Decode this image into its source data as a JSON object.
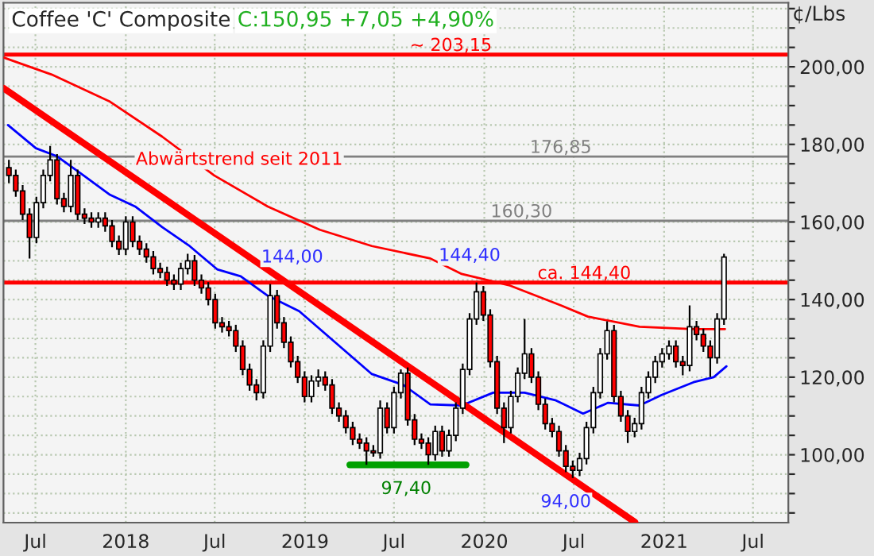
{
  "chart_data": {
    "type": "candlestick",
    "title": "Coffee 'C' Composite",
    "subtitle": "C:150,95 +7,05 +4,90%",
    "ylabel": "¢/Lbs",
    "x": [
      "2017-05-08",
      "2017-05-22",
      "2017-06-05",
      "2017-06-19",
      "2017-07-03",
      "2017-07-17",
      "2017-07-31",
      "2017-08-14",
      "2017-08-28",
      "2017-09-11",
      "2017-09-25",
      "2017-10-09",
      "2017-10-23",
      "2017-11-06",
      "2017-11-20",
      "2017-12-04",
      "2017-12-18",
      "2018-01-01",
      "2018-01-15",
      "2018-01-29",
      "2018-02-12",
      "2018-02-26",
      "2018-03-12",
      "2018-03-26",
      "2018-04-09",
      "2018-04-23",
      "2018-05-07",
      "2018-05-21",
      "2018-06-04",
      "2018-06-18",
      "2018-07-02",
      "2018-07-16",
      "2018-07-30",
      "2018-08-13",
      "2018-08-27",
      "2018-09-10",
      "2018-09-24",
      "2018-10-08",
      "2018-10-22",
      "2018-11-05",
      "2018-11-19",
      "2018-12-03",
      "2018-12-17",
      "2018-12-31",
      "2019-01-14",
      "2019-01-28",
      "2019-02-11",
      "2019-02-25",
      "2019-03-11",
      "2019-03-25",
      "2019-04-08",
      "2019-04-22",
      "2019-05-06",
      "2019-05-20",
      "2019-06-03",
      "2019-06-17",
      "2019-07-01",
      "2019-07-15",
      "2019-07-29",
      "2019-08-12",
      "2019-08-26",
      "2019-09-09",
      "2019-09-23",
      "2019-10-07",
      "2019-10-21",
      "2019-11-04",
      "2019-11-18",
      "2019-12-02",
      "2019-12-16",
      "2019-12-30",
      "2020-01-13",
      "2020-01-27",
      "2020-02-10",
      "2020-02-24",
      "2020-03-09",
      "2020-03-23",
      "2020-04-06",
      "2020-04-20",
      "2020-05-04",
      "2020-05-18",
      "2020-06-01",
      "2020-06-15",
      "2020-06-29",
      "2020-07-13",
      "2020-07-27",
      "2020-08-10",
      "2020-08-24",
      "2020-09-07",
      "2020-09-21",
      "2020-10-05",
      "2020-10-19",
      "2020-11-02",
      "2020-11-16",
      "2020-11-30",
      "2020-12-14",
      "2020-12-28",
      "2021-01-11",
      "2021-01-25",
      "2021-02-08",
      "2021-02-22",
      "2021-03-08",
      "2021-03-22",
      "2021-04-05",
      "2021-04-19",
      "2021-05-03"
    ],
    "ohlc": [
      [
        174,
        176,
        170,
        172
      ],
      [
        172,
        173.5,
        166.5,
        168
      ],
      [
        168,
        169.5,
        160.5,
        162
      ],
      [
        162,
        163.5,
        150.6,
        156
      ],
      [
        156,
        166.5,
        154.5,
        165
      ],
      [
        165,
        173.5,
        163.5,
        172
      ],
      [
        172,
        179.6,
        170.5,
        176
      ],
      [
        176,
        177.5,
        164.5,
        166
      ],
      [
        166,
        167.5,
        162.5,
        164
      ],
      [
        164,
        176,
        162.5,
        172
      ],
      [
        172,
        173.5,
        160.5,
        162
      ],
      [
        162,
        163.5,
        159.5,
        161
      ],
      [
        161,
        162.5,
        158.5,
        160
      ],
      [
        160,
        162.5,
        158.5,
        161
      ],
      [
        161,
        162.5,
        157.5,
        159
      ],
      [
        159,
        160.5,
        153.5,
        155
      ],
      [
        155,
        156.5,
        151.5,
        153
      ],
      [
        153,
        161.5,
        151.5,
        160
      ],
      [
        160,
        161.5,
        153.5,
        155
      ],
      [
        155,
        156.5,
        151.5,
        153
      ],
      [
        153,
        154.5,
        149.5,
        151
      ],
      [
        151,
        152.5,
        146.5,
        148
      ],
      [
        148,
        149.5,
        145.5,
        147
      ],
      [
        147,
        148.5,
        143.5,
        145
      ],
      [
        145,
        146.5,
        142.5,
        144
      ],
      [
        144,
        149.5,
        142.5,
        148
      ],
      [
        148,
        151.8,
        146.5,
        150
      ],
      [
        150,
        151.5,
        143.5,
        145
      ],
      [
        145,
        146.5,
        141.5,
        143
      ],
      [
        143,
        144.5,
        138.5,
        140
      ],
      [
        140,
        141.5,
        132.5,
        134
      ],
      [
        134,
        135.5,
        131.5,
        133
      ],
      [
        133,
        134.5,
        130.5,
        132
      ],
      [
        132,
        133.5,
        126.5,
        128
      ],
      [
        128,
        129.5,
        120.5,
        122
      ],
      [
        122,
        123.5,
        116.5,
        118
      ],
      [
        118,
        119.5,
        114,
        116
      ],
      [
        116,
        129.5,
        114.5,
        128
      ],
      [
        128,
        144,
        126.5,
        141
      ],
      [
        141,
        142.5,
        132.5,
        134
      ],
      [
        134,
        135.5,
        127.5,
        129
      ],
      [
        129,
        130.5,
        122.5,
        124
      ],
      [
        124,
        125.5,
        118.5,
        120
      ],
      [
        120,
        121.5,
        113.5,
        115
      ],
      [
        115,
        120.5,
        113.5,
        119
      ],
      [
        119,
        122,
        117.5,
        120
      ],
      [
        120,
        121.5,
        116.5,
        118
      ],
      [
        118,
        119.5,
        110.5,
        112
      ],
      [
        112,
        113.5,
        108.5,
        110
      ],
      [
        110,
        111.5,
        105.5,
        107
      ],
      [
        107,
        108.5,
        102.5,
        104
      ],
      [
        104,
        105.5,
        101.5,
        103
      ],
      [
        103,
        104.5,
        97.4,
        101
      ],
      [
        101,
        102.5,
        99.5,
        100.5
      ],
      [
        100.5,
        114,
        99,
        112
      ],
      [
        112,
        113.5,
        105.5,
        107
      ],
      [
        107,
        117.5,
        105.5,
        116
      ],
      [
        116,
        122,
        114.5,
        121
      ],
      [
        121,
        122.5,
        107.5,
        109
      ],
      [
        109,
        110.5,
        102.5,
        104
      ],
      [
        104,
        105.5,
        101.5,
        103
      ],
      [
        103,
        104.5,
        97.4,
        100
      ],
      [
        100,
        107.5,
        98.5,
        106
      ],
      [
        106,
        107.5,
        99.5,
        101
      ],
      [
        101,
        106.5,
        99.5,
        105
      ],
      [
        105,
        113.5,
        103.5,
        112
      ],
      [
        112,
        123.5,
        110.5,
        122
      ],
      [
        122,
        136.5,
        120.5,
        135
      ],
      [
        135,
        144.4,
        133.5,
        142
      ],
      [
        142,
        143.5,
        134.5,
        136
      ],
      [
        136,
        137.5,
        122.5,
        124
      ],
      [
        124,
        125.5,
        110.5,
        112
      ],
      [
        112,
        113.5,
        103,
        107
      ],
      [
        107,
        116.5,
        105.5,
        115
      ],
      [
        115,
        122.5,
        113.5,
        121
      ],
      [
        121,
        135,
        119.5,
        126
      ],
      [
        126,
        127.5,
        118.5,
        120
      ],
      [
        120,
        121.5,
        111.5,
        113
      ],
      [
        113,
        114.5,
        106.5,
        108
      ],
      [
        108,
        109.5,
        104.5,
        106
      ],
      [
        106,
        107.5,
        99.5,
        101
      ],
      [
        101,
        102.5,
        95.5,
        97
      ],
      [
        97,
        98.5,
        94,
        96
      ],
      [
        96,
        100.5,
        94.5,
        99
      ],
      [
        99,
        108.5,
        97.5,
        107
      ],
      [
        107,
        117.5,
        105.5,
        116
      ],
      [
        116,
        127.5,
        114.5,
        126
      ],
      [
        126,
        134.4,
        124.5,
        132
      ],
      [
        132,
        133.5,
        113.5,
        115
      ],
      [
        115,
        116.5,
        108.5,
        110
      ],
      [
        110,
        111.5,
        103,
        106
      ],
      [
        106,
        109.5,
        104.5,
        108
      ],
      [
        108,
        117.5,
        106.5,
        116
      ],
      [
        116,
        121.5,
        114.5,
        120
      ],
      [
        120,
        125.5,
        118.5,
        124
      ],
      [
        124,
        127.5,
        122.5,
        126
      ],
      [
        126,
        129.5,
        124.5,
        128
      ],
      [
        128,
        129.5,
        122.5,
        124
      ],
      [
        124,
        125.5,
        120.5,
        123
      ],
      [
        123,
        138.5,
        121.5,
        133
      ],
      [
        133,
        134.5,
        129.5,
        131
      ],
      [
        131,
        132.5,
        126.5,
        128
      ],
      [
        128,
        129.5,
        120,
        125
      ],
      [
        125,
        136.5,
        123.5,
        135
      ],
      [
        135,
        151.8,
        133.5,
        150.95
      ]
    ],
    "series": [
      {
        "type": "line",
        "color": "#ff0000",
        "x": [
          "2017-04-27",
          "2017-08-03",
          "2017-11-30",
          "2018-03-16",
          "2018-06-30",
          "2018-10-17",
          "2019-01-31",
          "2019-05-17",
          "2019-09-13",
          "2019-11-16",
          "2020-02-20",
          "2020-06-05",
          "2020-07-30",
          "2020-11-12",
          "2021-03-02",
          "2021-05-05"
        ],
        "values": [
          202.4,
          198,
          191,
          182,
          172,
          164,
          158,
          153.8,
          150.6,
          146.6,
          143.7,
          138.5,
          135.6,
          133,
          132.4,
          132.4
        ]
      },
      {
        "type": "line",
        "color": "#0000ff",
        "x": [
          "2017-05-06",
          "2017-07-02",
          "2017-08-13",
          "2017-10-07",
          "2017-11-30",
          "2018-01-20",
          "2018-03-16",
          "2018-05-09",
          "2018-07-06",
          "2018-08-23",
          "2018-10-17",
          "2018-12-20",
          "2019-02-22",
          "2019-05-17",
          "2019-07-20",
          "2019-09-13",
          "2019-11-16",
          "2020-01-19",
          "2020-03-23",
          "2020-05-26",
          "2020-07-20",
          "2020-09-09",
          "2020-11-12",
          "2020-12-27",
          "2021-03-02",
          "2021-04-12",
          "2021-05-08"
        ],
        "values": [
          185,
          179,
          177,
          172,
          167,
          164,
          158.7,
          154,
          147.8,
          146,
          141,
          137,
          130,
          120.8,
          118,
          113,
          112.7,
          116,
          116,
          114,
          110.6,
          113.4,
          112.7,
          115.4,
          118.7,
          120,
          122.8
        ]
      },
      {
        "type": "line",
        "color": "#ff0000",
        "x": [
          "2017-04-27",
          "2020-11-03"
        ],
        "values": [
          194.5,
          82.6
        ]
      },
      {
        "type": "line",
        "color": "#00a000",
        "x": [
          "2019-04-02",
          "2019-11-25"
        ],
        "values": [
          97.4,
          97.4
        ]
      }
    ],
    "ref_lines": [
      {
        "axis": "y",
        "value": 203.15,
        "label": "~ 203,15",
        "color": "#ff0000"
      },
      {
        "axis": "y",
        "value": 176.85,
        "label": "176,85",
        "color": "#808080"
      },
      {
        "axis": "y",
        "value": 160.3,
        "label": "160,30",
        "color": "#808080"
      },
      {
        "axis": "y",
        "value": 144.4,
        "label": "ca. 144,40",
        "color": "#ff0000"
      }
    ],
    "annotations": [
      {
        "text": "Abwärtstrend seit 2011",
        "x": "2018-08-20",
        "y": 176
      },
      {
        "text": "144,00",
        "x": "2018-10-22",
        "y": 144
      },
      {
        "text": "144,40",
        "x": "2019-12-02",
        "y": 144.4
      },
      {
        "text": "97,40",
        "x": "2019-07-26",
        "y": 97.4
      },
      {
        "text": "94,00",
        "x": "2020-06-15",
        "y": 94
      }
    ],
    "xlim": [
      "2017-04-27",
      "2021-09-11"
    ],
    "xticks": [
      {
        "value": "2017-07-01",
        "label": "Jul"
      },
      {
        "value": "2018-01-01",
        "label": "2018"
      },
      {
        "value": "2018-07-01",
        "label": "Jul"
      },
      {
        "value": "2019-01-01",
        "label": "2019"
      },
      {
        "value": "2019-07-01",
        "label": "Jul"
      },
      {
        "value": "2020-01-01",
        "label": "2020"
      },
      {
        "value": "2020-07-01",
        "label": "Jul"
      },
      {
        "value": "2021-01-01",
        "label": "2021"
      },
      {
        "value": "2021-07-01",
        "label": "Jul"
      }
    ],
    "ylim": [
      82.5,
      216.5
    ],
    "yticks": [
      {
        "value": 85,
        "label": null
      },
      {
        "value": 90,
        "label": null
      },
      {
        "value": 95,
        "label": null
      },
      {
        "value": 100,
        "label": "100,00"
      },
      {
        "value": 105,
        "label": null
      },
      {
        "value": 110,
        "label": null
      },
      {
        "value": 115,
        "label": null
      },
      {
        "value": 120,
        "label": "120,00"
      },
      {
        "value": 125,
        "label": null
      },
      {
        "value": 130,
        "label": null
      },
      {
        "value": 135,
        "label": null
      },
      {
        "value": 140,
        "label": "140,00"
      },
      {
        "value": 145,
        "label": null
      },
      {
        "value": 150,
        "label": null
      },
      {
        "value": 155,
        "label": null
      },
      {
        "value": 160,
        "label": "160,00"
      },
      {
        "value": 165,
        "label": null
      },
      {
        "value": 170,
        "label": null
      },
      {
        "value": 175,
        "label": null
      },
      {
        "value": 180,
        "label": "180,00"
      },
      {
        "value": 185,
        "label": null
      },
      {
        "value": 190,
        "label": null
      },
      {
        "value": 195,
        "label": null
      },
      {
        "value": 200,
        "label": "200,00"
      },
      {
        "value": 205,
        "label": null
      },
      {
        "value": 210,
        "label": null
      },
      {
        "value": 215,
        "label": null
      }
    ],
    "grid": true,
    "legend": false
  }
}
